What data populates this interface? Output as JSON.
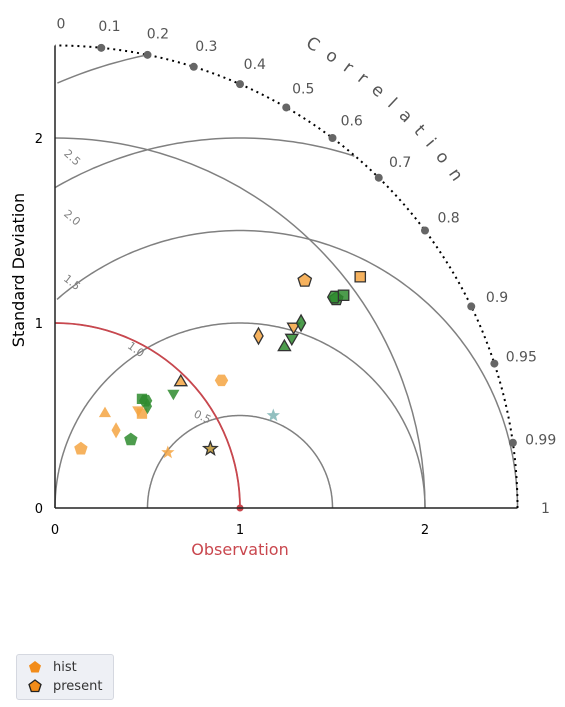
{
  "chart_data": {
    "type": "scatter",
    "subtype": "taylor-diagram",
    "ylabel": "Standard Deviation",
    "xlabel": "Observation",
    "correlation_label": "Correlation",
    "std_ticks": [
      "0",
      "1",
      "2"
    ],
    "std_tick_values": [
      0,
      1,
      2
    ],
    "std_max": 2.5,
    "correlation_ticks": [
      "0",
      "0.1",
      "0.2",
      "0.3",
      "0.4",
      "0.5",
      "0.6",
      "0.7",
      "0.8",
      "0.9",
      "0.95",
      "0.99",
      "1"
    ],
    "correlation_values": [
      0,
      0.1,
      0.2,
      0.3,
      0.4,
      0.5,
      0.6,
      0.7,
      0.8,
      0.9,
      0.95,
      0.99,
      1
    ],
    "rms_contours": [
      "0.5",
      "1.0",
      "1.5",
      "2.0",
      "2.5"
    ],
    "rms_values": [
      0.5,
      1.0,
      1.5,
      2.0,
      2.5
    ],
    "observation_std": 1,
    "colors": {
      "orange": "#f5a442",
      "green": "#2e8b2e",
      "olive": "#b8912e",
      "teal": "#7fb5b5",
      "obs": "#c9474e",
      "grid": "#808080"
    },
    "points": [
      {
        "group": "hist",
        "shape": "pentagon",
        "color": "orange",
        "x": 0.14,
        "y": 0.32
      },
      {
        "group": "hist",
        "shape": "triangle-up",
        "color": "orange",
        "x": 0.27,
        "y": 0.51
      },
      {
        "group": "hist",
        "shape": "diamond",
        "color": "orange",
        "x": 0.33,
        "y": 0.42
      },
      {
        "group": "hist",
        "shape": "triangle-down",
        "color": "orange",
        "x": 0.45,
        "y": 0.53
      },
      {
        "group": "hist",
        "shape": "square",
        "color": "orange",
        "x": 0.47,
        "y": 0.51
      },
      {
        "group": "hist",
        "shape": "hexagon",
        "color": "orange",
        "x": 0.9,
        "y": 0.69
      },
      {
        "group": "hist",
        "shape": "star",
        "color": "orange",
        "x": 0.61,
        "y": 0.3
      },
      {
        "group": "hist",
        "shape": "pentagon",
        "color": "green",
        "x": 0.41,
        "y": 0.37
      },
      {
        "group": "hist",
        "shape": "square",
        "color": "green",
        "x": 0.47,
        "y": 0.59
      },
      {
        "group": "hist",
        "shape": "diamond",
        "color": "green",
        "x": 0.5,
        "y": 0.55
      },
      {
        "group": "hist",
        "shape": "hexagon",
        "color": "green",
        "x": 0.49,
        "y": 0.58
      },
      {
        "group": "hist",
        "shape": "triangle-down",
        "color": "green",
        "x": 0.64,
        "y": 0.62
      },
      {
        "group": "hist",
        "shape": "star",
        "color": "teal",
        "x": 1.18,
        "y": 0.5
      },
      {
        "group": "present",
        "shape": "triangle-up",
        "color": "orange",
        "x": 0.68,
        "y": 0.68
      },
      {
        "group": "present",
        "shape": "star",
        "color": "olive",
        "x": 0.84,
        "y": 0.32
      },
      {
        "group": "present",
        "shape": "diamond",
        "color": "orange",
        "x": 1.1,
        "y": 0.93
      },
      {
        "group": "present",
        "shape": "triangle-down",
        "color": "orange",
        "x": 1.29,
        "y": 0.98
      },
      {
        "group": "present",
        "shape": "pentagon",
        "color": "orange",
        "x": 1.35,
        "y": 1.23
      },
      {
        "group": "present",
        "shape": "square",
        "color": "orange",
        "x": 1.65,
        "y": 1.25
      },
      {
        "group": "present",
        "shape": "triangle-up",
        "color": "green",
        "x": 1.24,
        "y": 0.87
      },
      {
        "group": "present",
        "shape": "triangle-down",
        "color": "green",
        "x": 1.28,
        "y": 0.92
      },
      {
        "group": "present",
        "shape": "diamond",
        "color": "green",
        "x": 1.33,
        "y": 1.0
      },
      {
        "group": "present",
        "shape": "pentagon",
        "color": "green",
        "x": 1.52,
        "y": 1.13
      },
      {
        "group": "present",
        "shape": "hexagon",
        "color": "green",
        "x": 1.51,
        "y": 1.14
      },
      {
        "group": "present",
        "shape": "square",
        "color": "green",
        "x": 1.56,
        "y": 1.15
      }
    ]
  },
  "legend": {
    "hist_label": "hist",
    "present_label": "present"
  }
}
